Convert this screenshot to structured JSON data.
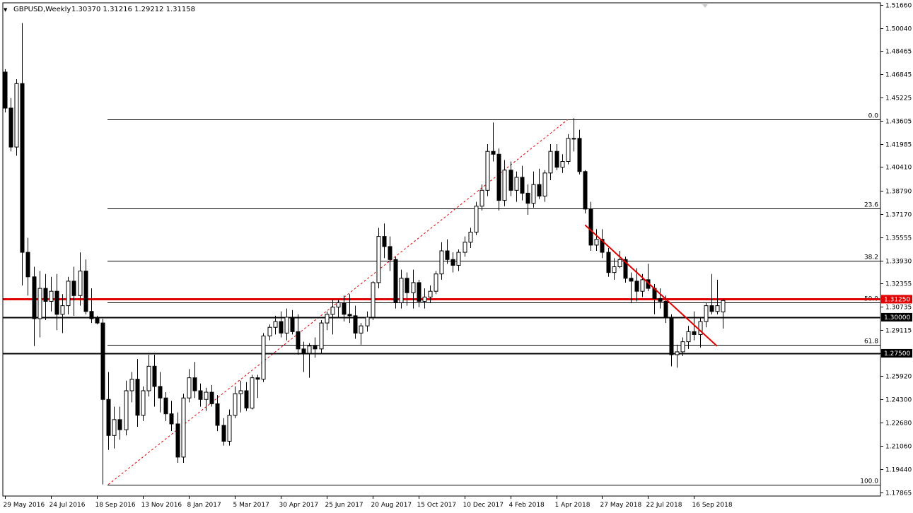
{
  "header": {
    "collapse_glyph": "▼",
    "symbol": "GBPUSD,Weekly",
    "ohlc": "1.30370 1.31216 1.29212 1.31158"
  },
  "colors": {
    "background": "#ffffff",
    "candle": "#000000",
    "up_fill": "#ffffff",
    "down_fill": "#000000",
    "trendline": "#e00000",
    "resistance_line": "#e00000",
    "horizontal_line": "#000000",
    "fib_line": "#000000",
    "price_badge_red": "#e00000",
    "price_badge_black": "#000000"
  },
  "chart_data": {
    "type": "candlestick",
    "y_range": [
      1.176,
      1.518
    ],
    "price_ticks": [
      "1.51660",
      "1.50040",
      "1.48465",
      "1.46845",
      "1.45225",
      "1.43605",
      "1.41985",
      "1.40410",
      "1.38790",
      "1.37170",
      "1.35555",
      "1.33930",
      "1.32355",
      "1.30735",
      "1.29115",
      "1.27500",
      "1.25920",
      "1.24300",
      "1.22680",
      "1.21060",
      "1.19440",
      "1.17865"
    ],
    "date_labels": [
      {
        "label": "29 May 2016",
        "index": 0
      },
      {
        "label": "24 Jul 2016",
        "index": 8
      },
      {
        "label": "18 Sep 2016",
        "index": 16
      },
      {
        "label": "13 Nov 2016",
        "index": 24
      },
      {
        "label": "8 Jan 2017",
        "index": 32
      },
      {
        "label": "5 Mar 2017",
        "index": 40
      },
      {
        "label": "30 Apr 2017",
        "index": 48
      },
      {
        "label": "25 Jun 2017",
        "index": 56
      },
      {
        "label": "20 Aug 2017",
        "index": 64
      },
      {
        "label": "15 Oct 2017",
        "index": 72
      },
      {
        "label": "10 Dec 2017",
        "index": 80
      },
      {
        "label": "4 Feb 2018",
        "index": 88
      },
      {
        "label": "1 Apr 2018",
        "index": 96
      },
      {
        "label": "27 May 2018",
        "index": 104
      },
      {
        "label": "22 Jul 2018",
        "index": 112
      },
      {
        "label": "16 Sep 2018",
        "index": 120
      }
    ],
    "candles": [
      [
        1.47,
        1.472,
        1.442,
        1.445
      ],
      [
        1.445,
        1.452,
        1.415,
        1.418
      ],
      [
        1.418,
        1.465,
        1.412,
        1.462
      ],
      [
        1.462,
        1.504,
        1.322,
        1.345
      ],
      [
        1.345,
        1.355,
        1.315,
        1.328
      ],
      [
        1.328,
        1.335,
        1.28,
        1.299
      ],
      [
        1.299,
        1.332,
        1.286,
        1.32
      ],
      [
        1.32,
        1.33,
        1.298,
        1.311
      ],
      [
        1.311,
        1.328,
        1.304,
        1.318
      ],
      [
        1.318,
        1.33,
        1.291,
        1.302
      ],
      [
        1.302,
        1.316,
        1.289,
        1.308
      ],
      [
        1.308,
        1.328,
        1.302,
        1.325
      ],
      [
        1.325,
        1.335,
        1.301,
        1.315
      ],
      [
        1.315,
        1.345,
        1.308,
        1.332
      ],
      [
        1.332,
        1.34,
        1.302,
        1.304
      ],
      [
        1.304,
        1.32,
        1.296,
        1.299
      ],
      [
        1.299,
        1.301,
        1.295,
        1.296
      ],
      [
        1.296,
        1.299,
        1.184,
        1.243
      ],
      [
        1.243,
        1.262,
        1.208,
        1.218
      ],
      [
        1.218,
        1.238,
        1.209,
        1.229
      ],
      [
        1.229,
        1.238,
        1.215,
        1.222
      ],
      [
        1.222,
        1.256,
        1.218,
        1.249
      ],
      [
        1.249,
        1.262,
        1.241,
        1.257
      ],
      [
        1.257,
        1.271,
        1.224,
        1.232
      ],
      [
        1.232,
        1.252,
        1.228,
        1.249
      ],
      [
        1.249,
        1.274,
        1.245,
        1.266
      ],
      [
        1.266,
        1.274,
        1.238,
        1.252
      ],
      [
        1.252,
        1.262,
        1.234,
        1.244
      ],
      [
        1.244,
        1.248,
        1.228,
        1.233
      ],
      [
        1.233,
        1.242,
        1.221,
        1.226
      ],
      [
        1.226,
        1.234,
        1.199,
        1.203
      ],
      [
        1.203,
        1.247,
        1.199,
        1.244
      ],
      [
        1.244,
        1.264,
        1.241,
        1.258
      ],
      [
        1.258,
        1.269,
        1.244,
        1.249
      ],
      [
        1.249,
        1.254,
        1.238,
        1.243
      ],
      [
        1.243,
        1.251,
        1.235,
        1.248
      ],
      [
        1.248,
        1.253,
        1.238,
        1.24
      ],
      [
        1.24,
        1.246,
        1.221,
        1.225
      ],
      [
        1.225,
        1.23,
        1.211,
        1.214
      ],
      [
        1.214,
        1.236,
        1.211,
        1.232
      ],
      [
        1.232,
        1.252,
        1.23,
        1.247
      ],
      [
        1.247,
        1.256,
        1.234,
        1.249
      ],
      [
        1.249,
        1.255,
        1.235,
        1.237
      ],
      [
        1.237,
        1.26,
        1.236,
        1.258
      ],
      [
        1.258,
        1.26,
        1.244,
        1.257
      ],
      [
        1.257,
        1.289,
        1.255,
        1.287
      ],
      [
        1.287,
        1.295,
        1.284,
        1.293
      ],
      [
        1.293,
        1.301,
        1.288,
        1.297
      ],
      [
        1.297,
        1.304,
        1.286,
        1.289
      ],
      [
        1.289,
        1.306,
        1.284,
        1.3
      ],
      [
        1.3,
        1.305,
        1.288,
        1.29
      ],
      [
        1.29,
        1.302,
        1.274,
        1.278
      ],
      [
        1.278,
        1.283,
        1.262,
        1.275
      ],
      [
        1.275,
        1.282,
        1.258,
        1.28
      ],
      [
        1.28,
        1.286,
        1.272,
        1.278
      ],
      [
        1.278,
        1.298,
        1.275,
        1.296
      ],
      [
        1.296,
        1.304,
        1.291,
        1.302
      ],
      [
        1.302,
        1.312,
        1.288,
        1.307
      ],
      [
        1.307,
        1.312,
        1.3,
        1.31
      ],
      [
        1.31,
        1.315,
        1.297,
        1.302
      ],
      [
        1.302,
        1.316,
        1.296,
        1.301
      ],
      [
        1.301,
        1.308,
        1.285,
        1.289
      ],
      [
        1.289,
        1.296,
        1.281,
        1.294
      ],
      [
        1.294,
        1.304,
        1.29,
        1.3
      ],
      [
        1.3,
        1.325,
        1.298,
        1.324
      ],
      [
        1.324,
        1.362,
        1.32,
        1.356
      ],
      [
        1.356,
        1.365,
        1.341,
        1.349
      ],
      [
        1.349,
        1.356,
        1.332,
        1.34
      ],
      [
        1.34,
        1.342,
        1.306,
        1.31
      ],
      [
        1.31,
        1.333,
        1.306,
        1.327
      ],
      [
        1.327,
        1.331,
        1.308,
        1.317
      ],
      [
        1.317,
        1.333,
        1.306,
        1.324
      ],
      [
        1.324,
        1.326,
        1.307,
        1.311
      ],
      [
        1.311,
        1.32,
        1.306,
        1.314
      ],
      [
        1.314,
        1.322,
        1.31,
        1.318
      ],
      [
        1.318,
        1.332,
        1.316,
        1.33
      ],
      [
        1.33,
        1.352,
        1.326,
        1.346
      ],
      [
        1.346,
        1.354,
        1.337,
        1.34
      ],
      [
        1.34,
        1.345,
        1.331,
        1.336
      ],
      [
        1.336,
        1.347,
        1.332,
        1.345
      ],
      [
        1.345,
        1.356,
        1.342,
        1.352
      ],
      [
        1.352,
        1.362,
        1.348,
        1.359
      ],
      [
        1.359,
        1.38,
        1.357,
        1.377
      ],
      [
        1.377,
        1.392,
        1.374,
        1.388
      ],
      [
        1.388,
        1.42,
        1.384,
        1.415
      ],
      [
        1.415,
        1.435,
        1.408,
        1.413
      ],
      [
        1.413,
        1.417,
        1.374,
        1.381
      ],
      [
        1.381,
        1.409,
        1.377,
        1.402
      ],
      [
        1.402,
        1.408,
        1.384,
        1.388
      ],
      [
        1.388,
        1.401,
        1.38,
        1.397
      ],
      [
        1.397,
        1.405,
        1.381,
        1.386
      ],
      [
        1.386,
        1.392,
        1.371,
        1.379
      ],
      [
        1.379,
        1.401,
        1.376,
        1.392
      ],
      [
        1.392,
        1.403,
        1.382,
        1.384
      ],
      [
        1.384,
        1.402,
        1.38,
        1.4
      ],
      [
        1.4,
        1.42,
        1.395,
        1.415
      ],
      [
        1.415,
        1.42,
        1.402,
        1.404
      ],
      [
        1.404,
        1.413,
        1.4,
        1.408
      ],
      [
        1.408,
        1.427,
        1.406,
        1.424
      ],
      [
        1.424,
        1.438,
        1.415,
        1.424
      ],
      [
        1.424,
        1.43,
        1.399,
        1.401
      ],
      [
        1.401,
        1.402,
        1.372,
        1.375
      ],
      [
        1.375,
        1.38,
        1.346,
        1.35
      ],
      [
        1.35,
        1.361,
        1.346,
        1.354
      ],
      [
        1.354,
        1.361,
        1.341,
        1.345
      ],
      [
        1.345,
        1.348,
        1.328,
        1.331
      ],
      [
        1.331,
        1.341,
        1.326,
        1.335
      ],
      [
        1.335,
        1.346,
        1.334,
        1.34
      ],
      [
        1.34,
        1.342,
        1.324,
        1.327
      ],
      [
        1.327,
        1.331,
        1.31,
        1.325
      ],
      [
        1.325,
        1.334,
        1.311,
        1.318
      ],
      [
        1.318,
        1.33,
        1.314,
        1.326
      ],
      [
        1.326,
        1.337,
        1.318,
        1.32
      ],
      [
        1.32,
        1.323,
        1.302,
        1.313
      ],
      [
        1.313,
        1.32,
        1.306,
        1.311
      ],
      [
        1.311,
        1.315,
        1.296,
        1.3
      ],
      [
        1.3,
        1.302,
        1.266,
        1.274
      ],
      [
        1.274,
        1.281,
        1.265,
        1.276
      ],
      [
        1.276,
        1.286,
        1.273,
        1.283
      ],
      [
        1.283,
        1.294,
        1.278,
        1.29
      ],
      [
        1.29,
        1.304,
        1.284,
        1.288
      ],
      [
        1.288,
        1.3,
        1.279,
        1.297
      ],
      [
        1.297,
        1.31,
        1.293,
        1.308
      ],
      [
        1.308,
        1.33,
        1.302,
        1.304
      ],
      [
        1.304,
        1.326,
        1.302,
        1.308
      ],
      [
        1.3037,
        1.31216,
        1.29212,
        1.31158
      ]
    ],
    "fib_levels": [
      {
        "label": "0.0",
        "price": 1.437
      },
      {
        "label": "23.6",
        "price": 1.3752
      },
      {
        "label": "38.2",
        "price": 1.339
      },
      {
        "label": "50.0",
        "price": 1.3102
      },
      {
        "label": "61.8",
        "price": 1.281
      },
      {
        "label": "100.0",
        "price": 1.184
      }
    ],
    "fib_start_index": 18,
    "diagonal_line": {
      "from_index": 18,
      "from_price": 1.184,
      "to_index": 98,
      "to_price": 1.437
    },
    "horizontal_lines": [
      {
        "price": 1.3125,
        "label": "1.31250",
        "style": "red-thick"
      },
      {
        "price": 1.3,
        "label": "1.30000",
        "style": "black"
      },
      {
        "price": 1.275,
        "label": "1.27500",
        "style": "black"
      }
    ],
    "trendline": {
      "from_index": 101,
      "from_price": 1.364,
      "to_index": 124,
      "to_price": 1.28
    }
  }
}
